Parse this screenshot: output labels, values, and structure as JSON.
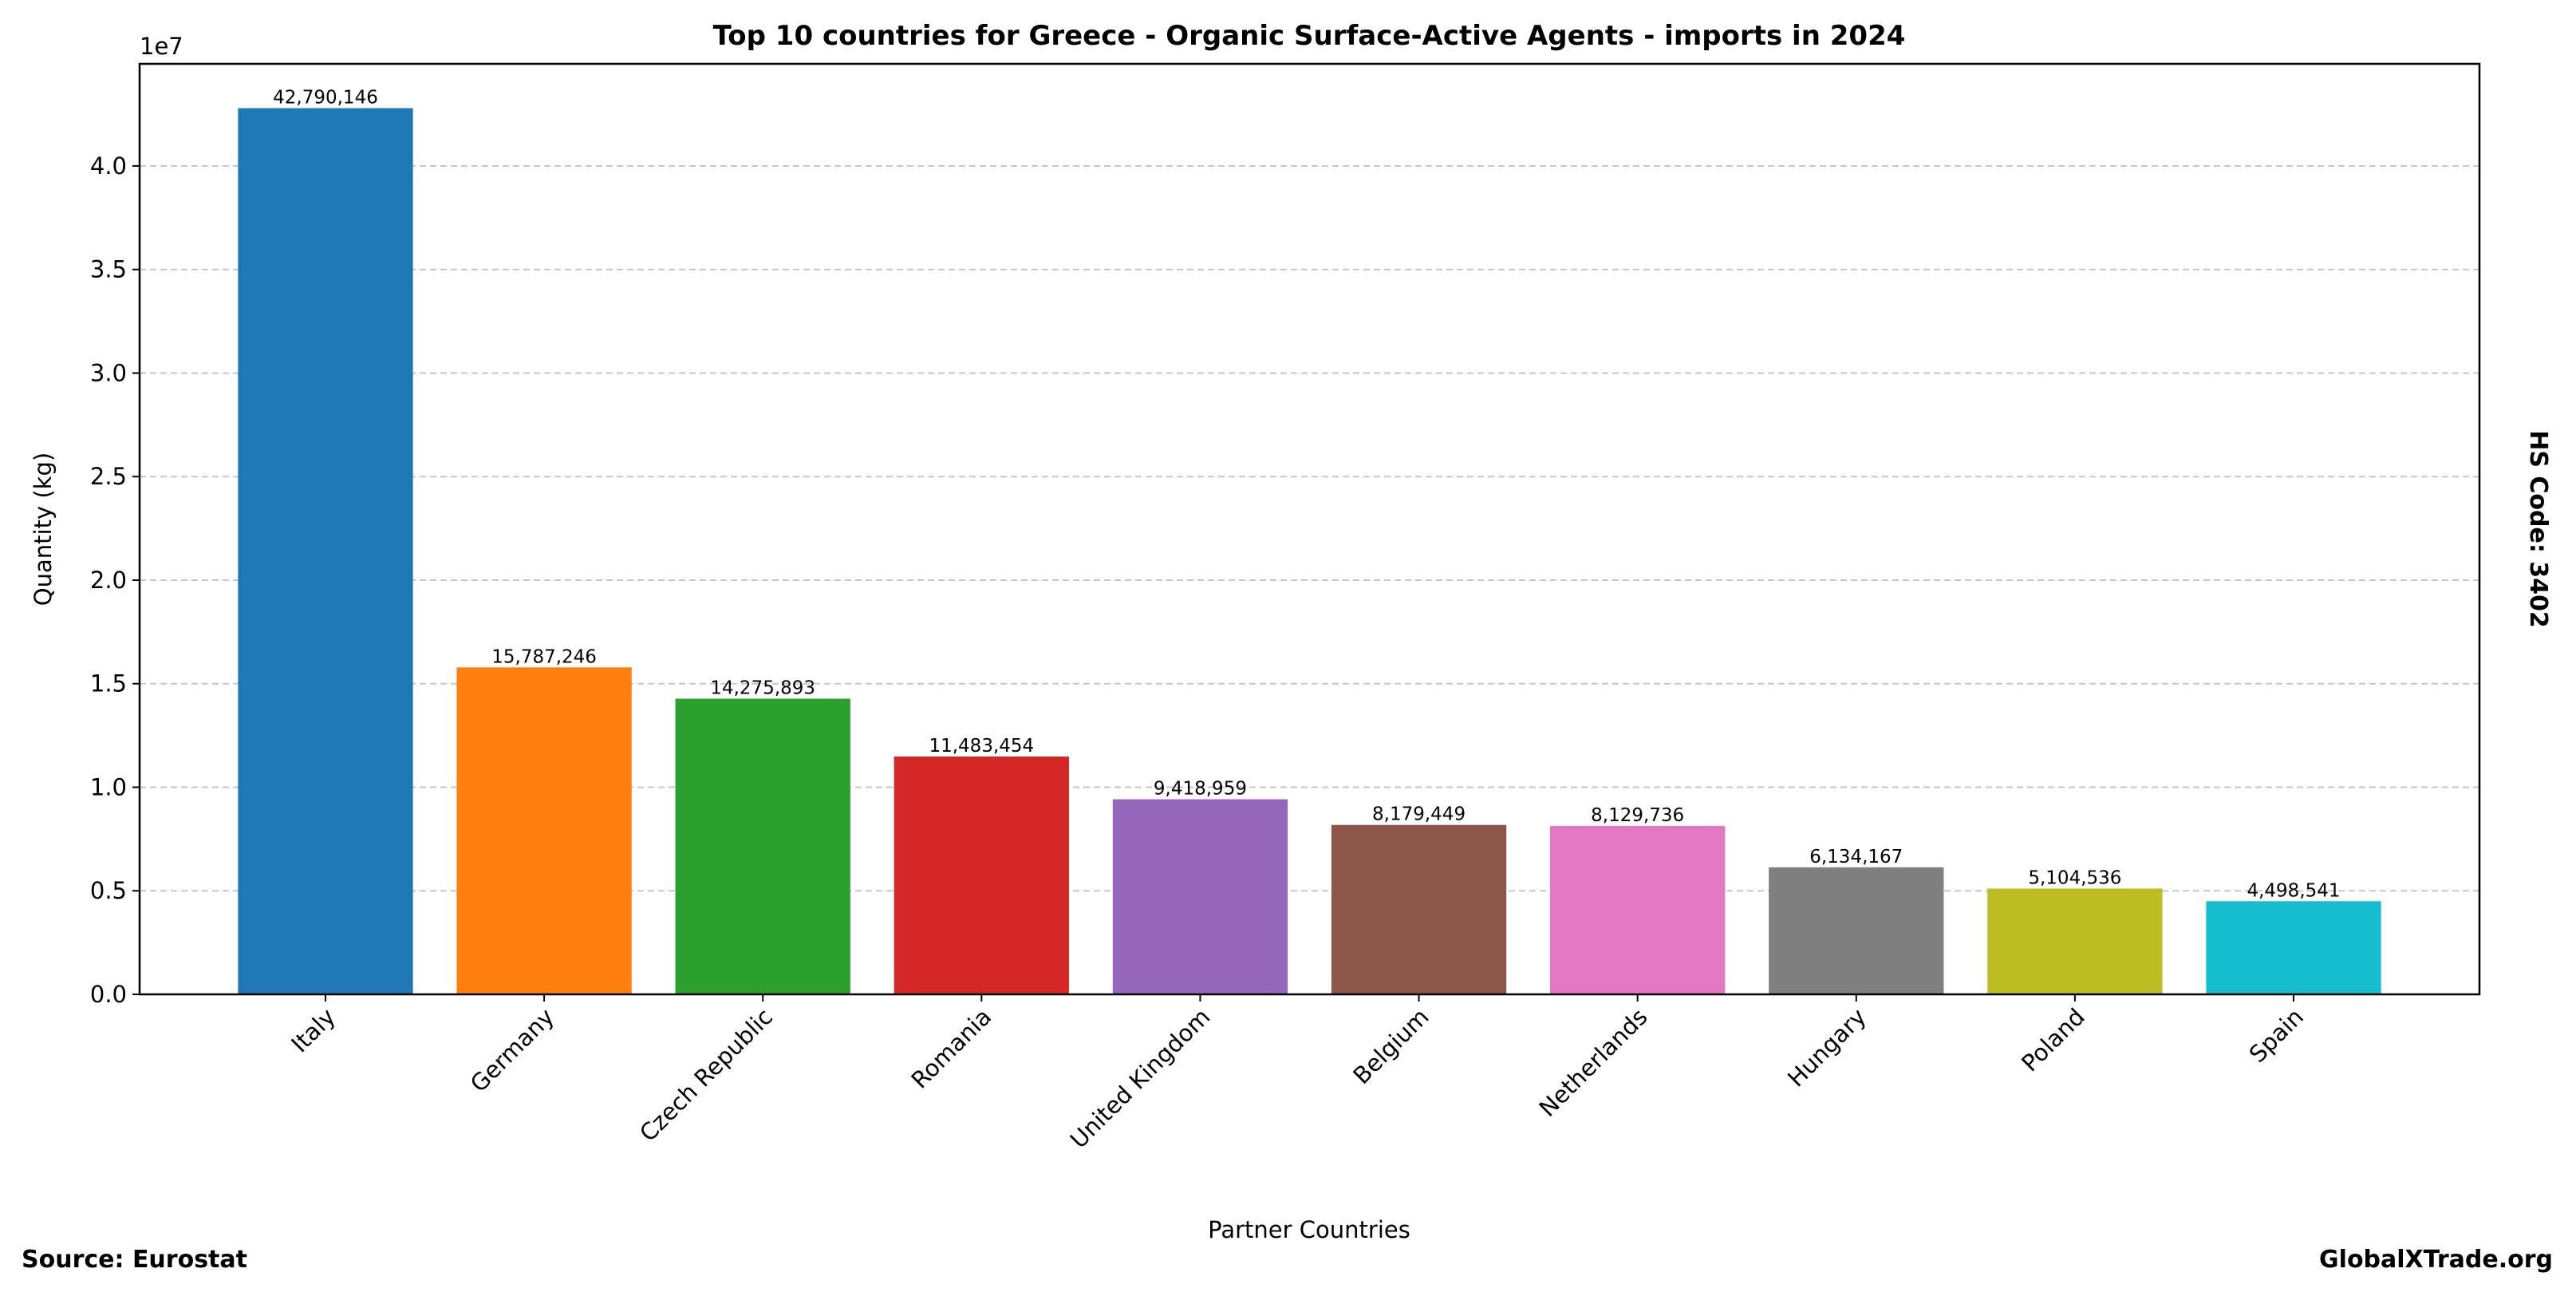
{
  "chart_data": {
    "type": "bar",
    "title": "Top 10 countries for Greece - Organic Surface-Active Agents - imports in 2024",
    "xlabel": "Partner Countries",
    "ylabel": "Quantity (kg)",
    "y_offset_label": "1e7",
    "categories": [
      "Italy",
      "Germany",
      "Czech Republic",
      "Romania",
      "United Kingdom",
      "Belgium",
      "Netherlands",
      "Hungary",
      "Poland",
      "Spain"
    ],
    "values": [
      42790146,
      15787246,
      14275893,
      11483454,
      9418959,
      8179449,
      8129736,
      6134167,
      5104536,
      4498541
    ],
    "value_labels": [
      "42,790,146",
      "15,787,246",
      "14,275,893",
      "11,483,454",
      "9,418,959",
      "8,179,449",
      "8,129,736",
      "6,134,167",
      "5,104,536",
      "4,498,541"
    ],
    "colors": [
      "#1f77b4",
      "#ff7f0e",
      "#2ca02c",
      "#d62728",
      "#9467bd",
      "#8c564b",
      "#e377c2",
      "#7f7f7f",
      "#bcbd22",
      "#17becf"
    ],
    "ylim": [
      0,
      44930000
    ],
    "yticks": [
      0,
      5000000,
      10000000,
      15000000,
      20000000,
      25000000,
      30000000,
      35000000,
      40000000
    ],
    "ytick_labels": [
      "0.0",
      "0.5",
      "1.0",
      "1.5",
      "2.0",
      "2.5",
      "3.0",
      "3.5",
      "4.0"
    ],
    "grid": "y dashed",
    "legend": "none"
  },
  "annotations": {
    "source": "Source: Eurostat",
    "brand": "GlobalXTrade.org",
    "hs_code": "HS Code: 3402"
  }
}
